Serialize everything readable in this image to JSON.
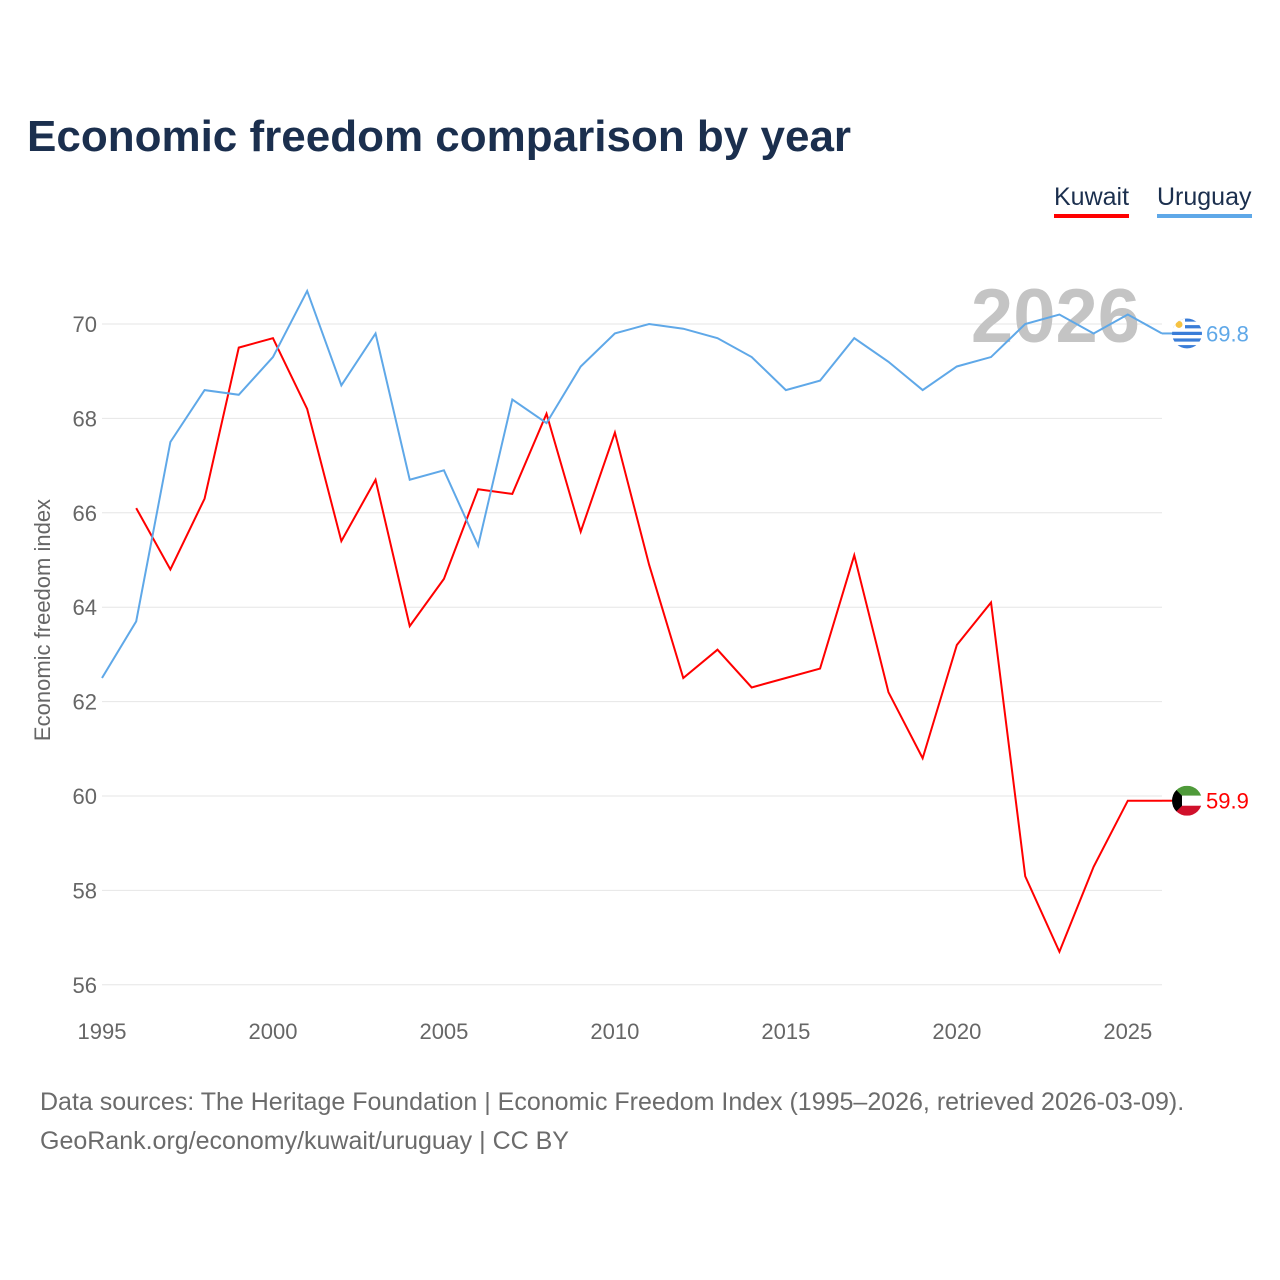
{
  "chart_data": {
    "type": "line",
    "title": "Economic freedom comparison by year",
    "xlabel": "",
    "ylabel": "Economic freedom index",
    "xlim": [
      1995,
      2026
    ],
    "ylim": [
      55.5,
      71.5
    ],
    "x_ticks": [
      1995,
      2000,
      2005,
      2010,
      2015,
      2020,
      2025
    ],
    "y_ticks": [
      56,
      58,
      60,
      62,
      64,
      66,
      68,
      70
    ],
    "grid": true,
    "legend_placement": "top-right",
    "year_watermark": "2026",
    "series": [
      {
        "name": "Kuwait",
        "color": "#ff0000",
        "end_label": "59.9",
        "x": [
          1996,
          1997,
          1998,
          1999,
          2000,
          2001,
          2002,
          2003,
          2004,
          2005,
          2006,
          2007,
          2008,
          2009,
          2010,
          2011,
          2012,
          2013,
          2014,
          2015,
          2016,
          2017,
          2018,
          2019,
          2020,
          2021,
          2022,
          2023,
          2024,
          2025,
          2026
        ],
        "values": [
          66.1,
          64.8,
          66.3,
          69.5,
          69.7,
          68.2,
          65.4,
          66.7,
          63.6,
          64.6,
          66.5,
          66.4,
          68.1,
          65.6,
          67.7,
          64.9,
          62.5,
          63.1,
          62.3,
          62.5,
          62.7,
          65.1,
          62.2,
          60.8,
          63.2,
          64.1,
          58.3,
          56.7,
          58.5,
          59.9,
          59.9
        ]
      },
      {
        "name": "Uruguay",
        "color": "#5fa8e8",
        "end_label": "69.8",
        "x": [
          1995,
          1996,
          1997,
          1998,
          1999,
          2000,
          2001,
          2002,
          2003,
          2004,
          2005,
          2006,
          2007,
          2008,
          2009,
          2010,
          2011,
          2012,
          2013,
          2014,
          2015,
          2016,
          2017,
          2018,
          2019,
          2020,
          2021,
          2022,
          2023,
          2024,
          2025,
          2026
        ],
        "values": [
          62.5,
          63.7,
          67.5,
          68.6,
          68.5,
          69.3,
          70.7,
          68.7,
          69.8,
          66.7,
          66.9,
          65.3,
          68.4,
          67.9,
          69.1,
          69.8,
          70.0,
          69.9,
          69.7,
          69.3,
          68.6,
          68.8,
          69.7,
          69.2,
          68.6,
          69.1,
          69.3,
          70.0,
          70.2,
          69.8,
          70.2,
          69.8
        ]
      }
    ]
  },
  "source_line1": "Data sources: The Heritage Foundation | Economic Freedom Index (1995–2026, retrieved 2026-03-09).",
  "source_line2": "GeoRank.org/economy/kuwait/uruguay | CC BY"
}
